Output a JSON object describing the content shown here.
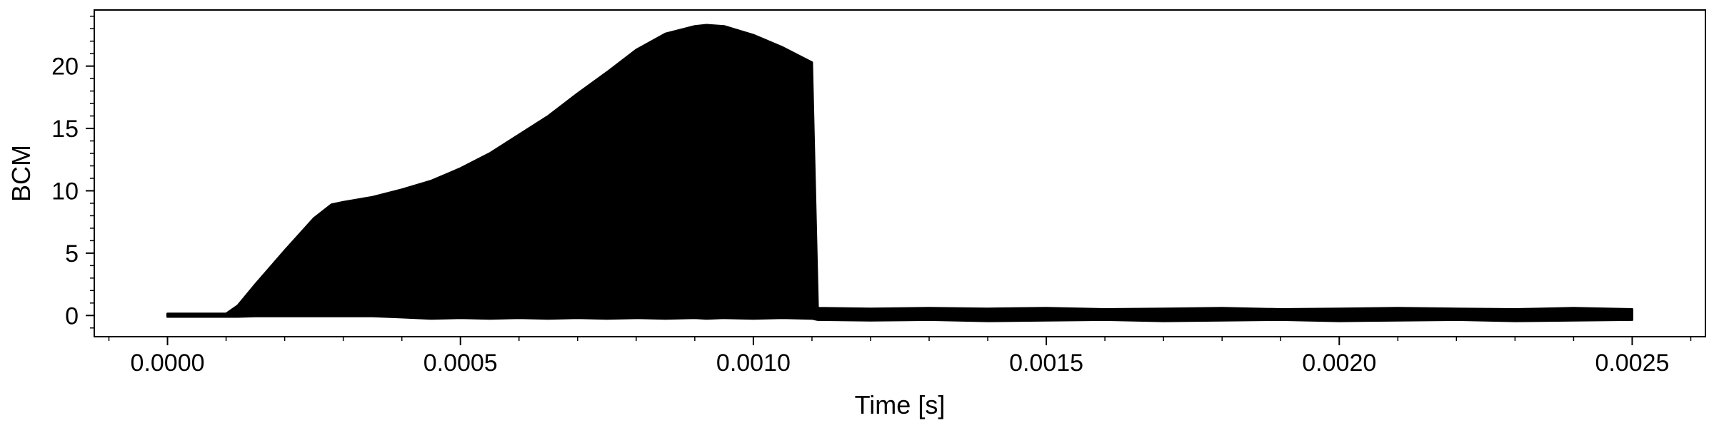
{
  "chart_data": {
    "type": "area",
    "xlabel": "Time [s]",
    "ylabel": "BCM",
    "xlim": [
      -0.000125,
      0.002625
    ],
    "ylim": [
      -1.7,
      24.5
    ],
    "x_ticks": [
      0.0,
      0.0005,
      0.001,
      0.0015,
      0.002,
      0.0025
    ],
    "x_tick_labels": [
      "0.0000",
      "0.0005",
      "0.0010",
      "0.0015",
      "0.0020",
      "0.0025"
    ],
    "y_ticks": [
      0,
      5,
      10,
      15,
      20
    ],
    "y_tick_labels": [
      "0",
      "5",
      "10",
      "15",
      "20"
    ],
    "grid": false,
    "series": [
      {
        "color": "#000000",
        "style": "filled oscillation envelope",
        "x": [
          0.0,
          0.0001,
          0.00012,
          0.00015,
          0.0002,
          0.00025,
          0.00028,
          0.0003,
          0.00035,
          0.0004,
          0.00045,
          0.0005,
          0.00055,
          0.0006,
          0.00065,
          0.0007,
          0.00075,
          0.0008,
          0.00085,
          0.0009,
          0.00092,
          0.00095,
          0.001,
          0.00105,
          0.0011,
          0.00111,
          0.0012,
          0.0013,
          0.0014,
          0.0015,
          0.0016,
          0.0017,
          0.0018,
          0.0019,
          0.002,
          0.0021,
          0.0022,
          0.0023,
          0.0024,
          0.0025
        ],
        "upper": [
          0.15,
          0.15,
          0.8,
          2.5,
          5.2,
          7.8,
          8.9,
          9.1,
          9.5,
          10.1,
          10.8,
          11.8,
          13.0,
          14.5,
          16.0,
          17.8,
          19.5,
          21.3,
          22.6,
          23.2,
          23.3,
          23.2,
          22.5,
          21.5,
          20.3,
          0.6,
          0.55,
          0.6,
          0.55,
          0.6,
          0.5,
          0.55,
          0.6,
          0.5,
          0.55,
          0.6,
          0.55,
          0.5,
          0.6,
          0.5
        ],
        "lower": [
          -0.1,
          -0.1,
          -0.1,
          -0.05,
          -0.05,
          -0.05,
          -0.05,
          -0.05,
          -0.05,
          -0.15,
          -0.25,
          -0.2,
          -0.25,
          -0.2,
          -0.25,
          -0.2,
          -0.25,
          -0.2,
          -0.25,
          -0.2,
          -0.25,
          -0.2,
          -0.25,
          -0.2,
          -0.25,
          -0.35,
          -0.4,
          -0.35,
          -0.45,
          -0.4,
          -0.35,
          -0.45,
          -0.4,
          -0.35,
          -0.45,
          -0.4,
          -0.35,
          -0.45,
          -0.4,
          -0.35
        ]
      }
    ]
  }
}
